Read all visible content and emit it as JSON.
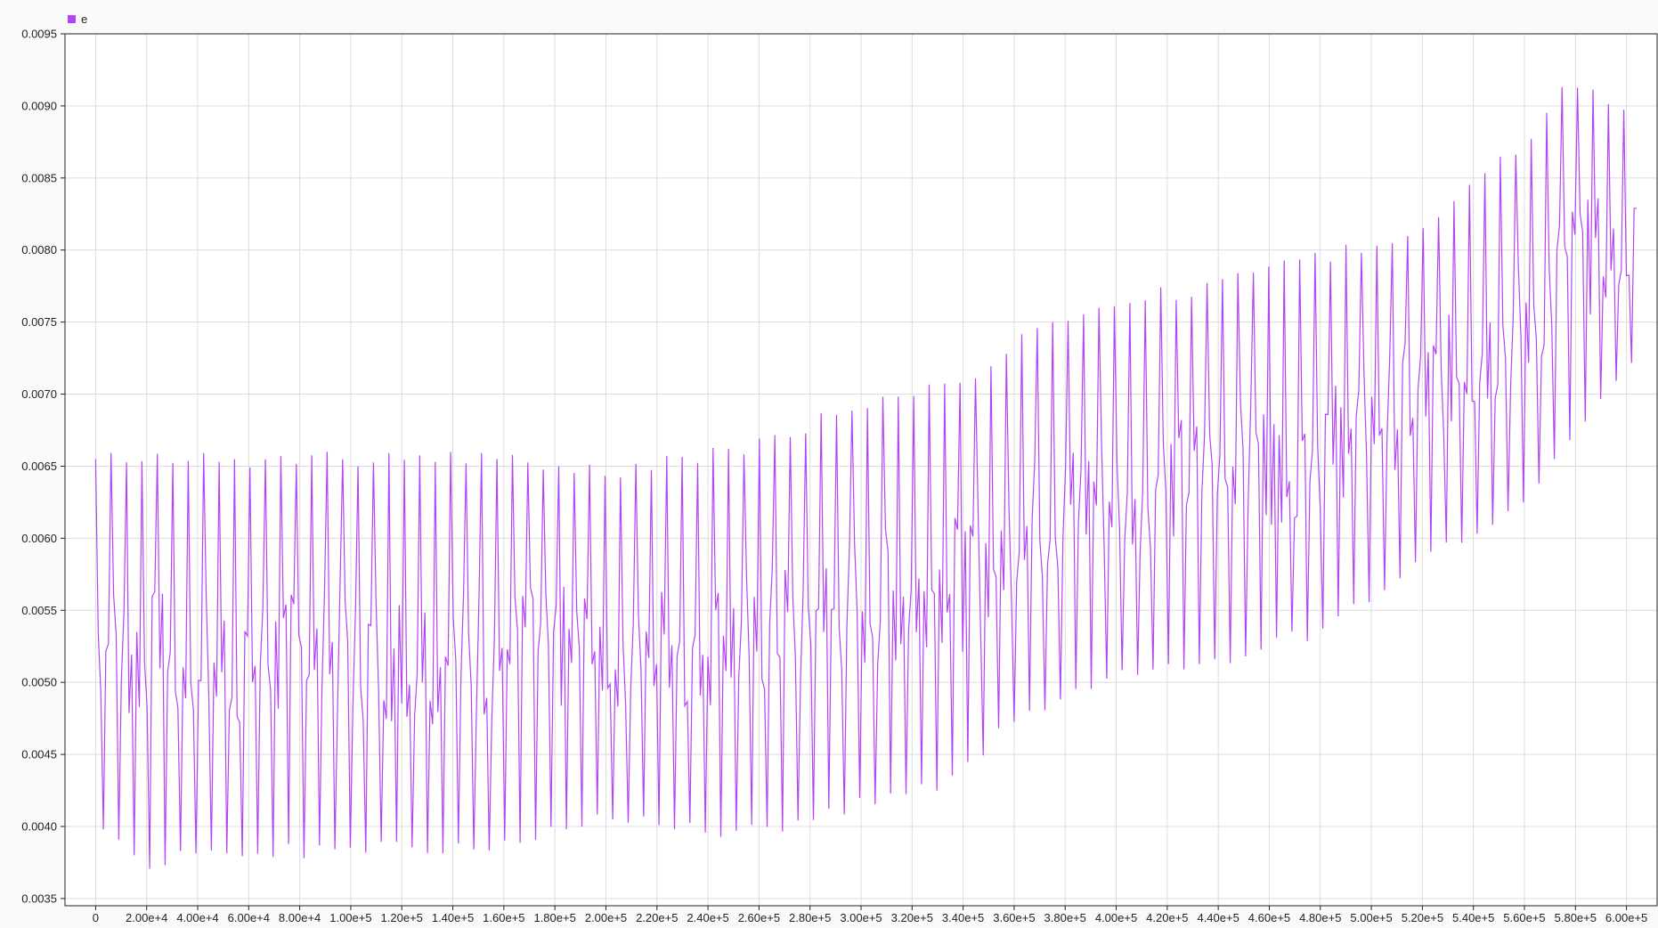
{
  "chart_data": {
    "type": "line",
    "series": [
      {
        "name": "e",
        "color": "#b443f5"
      }
    ],
    "x": [
      0,
      604000
    ],
    "xlim": [
      -12000,
      612000
    ],
    "ylim": [
      0.00345,
      0.0095
    ],
    "xticks": [
      0,
      20000,
      40000,
      60000,
      80000,
      100000,
      120000,
      140000,
      160000,
      180000,
      200000,
      220000,
      240000,
      260000,
      280000,
      300000,
      320000,
      340000,
      360000,
      380000,
      400000,
      420000,
      440000,
      460000,
      480000,
      500000,
      520000,
      540000,
      560000,
      580000,
      600000
    ],
    "xtick_labels": [
      "0",
      "2.00e+4",
      "4.00e+4",
      "6.00e+4",
      "8.00e+4",
      "1.00e+5",
      "1.20e+5",
      "1.40e+5",
      "1.60e+5",
      "1.80e+5",
      "2.00e+5",
      "2.20e+5",
      "2.40e+5",
      "2.60e+5",
      "2.80e+5",
      "3.00e+5",
      "3.20e+5",
      "3.40e+5",
      "3.60e+5",
      "3.80e+5",
      "4.00e+5",
      "4.20e+5",
      "4.40e+5",
      "4.60e+5",
      "4.80e+5",
      "5.00e+5",
      "5.20e+5",
      "5.40e+5",
      "5.60e+5",
      "5.80e+5",
      "6.00e+5"
    ],
    "yticks": [
      0.0035,
      0.004,
      0.0045,
      0.005,
      0.0055,
      0.006,
      0.0065,
      0.007,
      0.0075,
      0.008,
      0.0085,
      0.009,
      0.0095
    ],
    "ytick_labels": [
      "0.0035",
      "0.0040",
      "0.0045",
      "0.0050",
      "0.0055",
      "0.0060",
      "0.0065",
      "0.0070",
      "0.0075",
      "0.0080",
      "0.0085",
      "0.0090",
      "0.0095"
    ],
    "grid": true,
    "legend": "top-left",
    "envelope_lower": [
      [
        0,
        0.004
      ],
      [
        20000,
        0.0037
      ],
      [
        100000,
        0.0038
      ],
      [
        160000,
        0.0038
      ],
      [
        200000,
        0.004
      ],
      [
        260000,
        0.0039
      ],
      [
        300000,
        0.0041
      ],
      [
        340000,
        0.0043
      ],
      [
        360000,
        0.0047
      ],
      [
        400000,
        0.005
      ],
      [
        440000,
        0.0051
      ],
      [
        480000,
        0.0053
      ],
      [
        520000,
        0.0058
      ],
      [
        560000,
        0.0062
      ],
      [
        604000,
        0.0072
      ]
    ],
    "envelope_upper": [
      [
        0,
        0.0066
      ],
      [
        20000,
        0.0066
      ],
      [
        100000,
        0.0066
      ],
      [
        160000,
        0.0066
      ],
      [
        200000,
        0.0065
      ],
      [
        260000,
        0.0067
      ],
      [
        300000,
        0.007
      ],
      [
        340000,
        0.0071
      ],
      [
        360000,
        0.0074
      ],
      [
        400000,
        0.0077
      ],
      [
        440000,
        0.0078
      ],
      [
        480000,
        0.008
      ],
      [
        520000,
        0.0082
      ],
      [
        560000,
        0.0088
      ],
      [
        576000,
        0.0092
      ],
      [
        604000,
        0.009
      ]
    ],
    "approx_points": 600
  }
}
